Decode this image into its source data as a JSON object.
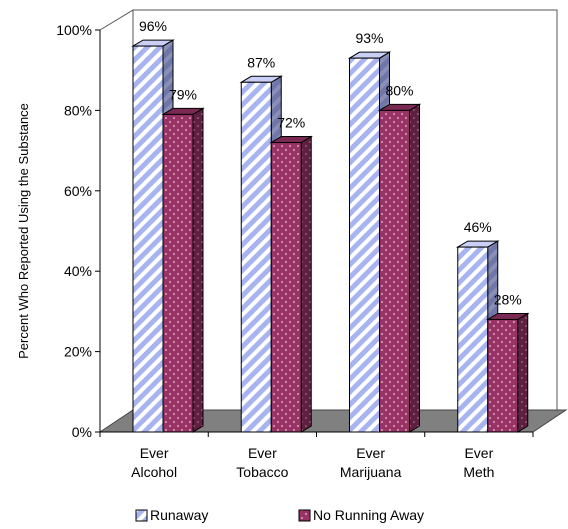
{
  "chart_data": {
    "type": "bar",
    "title": "",
    "xlabel": "",
    "ylabel": "Percent Who Reported Using the Substance",
    "categories": [
      [
        "Ever",
        "Alcohol"
      ],
      [
        "Ever",
        "Tobacco"
      ],
      [
        "Ever",
        "Marijuana"
      ],
      [
        "Ever",
        "Meth"
      ]
    ],
    "series": [
      {
        "name": "Runaway",
        "values": [
          96,
          87,
          93,
          46
        ],
        "labels": [
          "96%",
          "87%",
          "93%",
          "46%"
        ],
        "color": "#a8b4f0",
        "pattern": "diagonal-stripes"
      },
      {
        "name": "No Running Away",
        "values": [
          79,
          72,
          80,
          28
        ],
        "labels": [
          "79%",
          "72%",
          "80%",
          "28%"
        ],
        "color": "#993366",
        "pattern": "dots"
      }
    ],
    "ylim": [
      0,
      100
    ],
    "yticks": [
      "0%",
      "20%",
      "40%",
      "60%",
      "80%",
      "100%"
    ],
    "three_d": true,
    "grid": false,
    "legend_position": "bottom"
  }
}
